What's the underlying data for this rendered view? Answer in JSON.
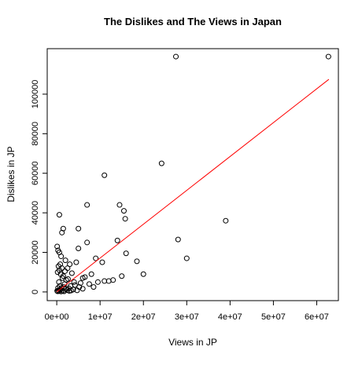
{
  "chart_data": {
    "type": "scatter",
    "title": "The Dislikes and The Views in Japan",
    "x_label": "Views in JP",
    "y_label": "Dislikes in JP",
    "color": "#000000",
    "x": [
      27500000,
      62700000,
      24200000,
      11000000,
      7000000,
      14500000,
      15500000,
      15800000,
      600000,
      39000000,
      5000000,
      1500000,
      1200000,
      28000000,
      14000000,
      7000000,
      100000,
      300000,
      600000,
      5000000,
      30000000,
      16000000,
      10500000,
      18500000,
      20000000,
      9000000,
      15000000,
      13000000,
      11000000,
      8000000,
      6000000,
      4500000,
      3000000,
      2500000,
      2000000,
      1000000,
      800000,
      400000,
      200000,
      1500000,
      2200000,
      3500000,
      4000000,
      5500000,
      6500000,
      7500000,
      9500000,
      12000000,
      500000,
      900000,
      1300000,
      1800000,
      2600000,
      3200000,
      4200000,
      5200000,
      300000,
      700000,
      1100000,
      1600000,
      2100000,
      2800000,
      3800000,
      100000,
      400000,
      800000,
      1400000,
      2400000,
      3300000,
      6000000,
      200000,
      500000,
      1000000,
      1700000,
      2900000,
      4700000,
      8500000,
      600000,
      1200000,
      1900000
    ],
    "values": [
      119000,
      119000,
      65000,
      59000,
      44000,
      44000,
      41000,
      37000,
      39000,
      36000,
      32000,
      32000,
      30000,
      26500,
      26000,
      25000,
      23000,
      21000,
      20000,
      22000,
      17000,
      19500,
      15000,
      15500,
      9000,
      17000,
      8000,
      6000,
      5500,
      9000,
      7000,
      15000,
      14000,
      12000,
      16000,
      18000,
      14000,
      13000,
      10000,
      8000,
      6000,
      9500,
      5000,
      4500,
      7500,
      4000,
      5000,
      5500,
      5000,
      9000,
      7000,
      4000,
      6500,
      3000,
      3500,
      2500,
      2000,
      3000,
      2000,
      2500,
      1500,
      1800,
      1200,
      500,
      800,
      1000,
      600,
      900,
      700,
      1600,
      300,
      400,
      200,
      300,
      500,
      800,
      2500,
      11000,
      12000,
      10500
    ],
    "line": {
      "color": "#ff0000",
      "x": [
        0,
        62800000
      ],
      "values": [
        0,
        107500
      ]
    },
    "xlim": [
      -2200000,
      65000000
    ],
    "ylim": [
      -4400,
      123000
    ],
    "xticks": [
      {
        "value": 0,
        "label": "0e+00"
      },
      {
        "value": 10000000,
        "label": "1e+07"
      },
      {
        "value": 20000000,
        "label": "2e+07"
      },
      {
        "value": 30000000,
        "label": "3e+07"
      },
      {
        "value": 40000000,
        "label": "4e+07"
      },
      {
        "value": 50000000,
        "label": "5e+07"
      },
      {
        "value": 60000000,
        "label": "6e+07"
      }
    ],
    "yticks": [
      0,
      20000,
      40000,
      60000,
      80000,
      100000
    ]
  }
}
